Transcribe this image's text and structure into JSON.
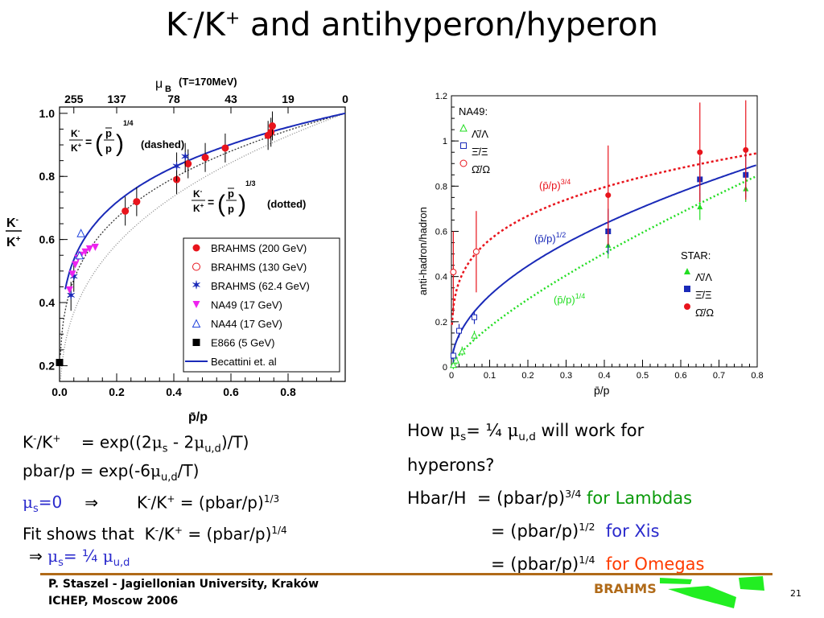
{
  "slide": {
    "title_a": "K",
    "title_sup1": "-",
    "title_b": "/K",
    "title_sup2": "+",
    "title_c": " and antihyperon/hyperon"
  },
  "left_plot": {
    "top_axis_title": "μ",
    "top_axis_sub": "B",
    "top_axis_temp": "(T=170MeV)",
    "top_ticks": [
      "255",
      "137",
      "78",
      "43",
      "19",
      "0"
    ],
    "y_label_num": "K-",
    "y_label_den": "K+",
    "x_label": "p̄/p",
    "formula_dashed_exp": "1/4",
    "formula_dashed_tag": "(dashed)",
    "formula_dotted_exp": "1/3",
    "formula_dotted_tag": "(dotted)",
    "formula_p_bar": "p",
    "formula_p": "p",
    "formula_eq": "=",
    "formula_k_minus": "K",
    "formula_k_plus": "K",
    "legend": [
      {
        "label": "BRAHMS (200 GeV)",
        "marker": "filled-circle",
        "color": "#e8141c"
      },
      {
        "label": "BRAHMS (130 GeV)",
        "marker": "open-circle",
        "color": "#e8141c"
      },
      {
        "label": "BRAHMS (62.4 GeV)",
        "marker": "star",
        "color": "#1a2ab8"
      },
      {
        "label": "NA49 (17 GeV)",
        "marker": "down-triangle",
        "color": "#ee22ee"
      },
      {
        "label": "NA44 (17 GeV)",
        "marker": "open-triangle",
        "color": "#2244dd"
      },
      {
        "label": "E866 (5 GeV)",
        "marker": "filled-square",
        "color": "#000000"
      },
      {
        "label": "Becattini et. al",
        "marker": "line",
        "color": "#1a2ab8"
      }
    ]
  },
  "right_plot": {
    "y_label": "anti-hadron/hadron",
    "x_label": "p̄/p",
    "na49_title": "NA49:",
    "star_title": "STAR:",
    "na49_legend": [
      "Λ̄/Λ",
      "Ξ̄/Ξ",
      "Ω̄/Ω"
    ],
    "star_legend": [
      "Λ̄/Λ",
      "Ξ̄/Ξ",
      "Ω̄/Ω"
    ],
    "curve_label_34": "(p̄/p)",
    "curve_exp_34": "3/4",
    "curve_label_12": "(p̄/p)",
    "curve_exp_12": "1/2",
    "curve_label_14": "(p̄/p)",
    "curve_exp_14": "1/4",
    "colors": {
      "red": "#e8141c",
      "blue": "#1a2ab8",
      "green": "#22dd22"
    }
  },
  "chart_data": [
    {
      "type": "scatter",
      "title": "",
      "xlabel": "p̄/p",
      "ylabel": "K-/K+",
      "xlim": [
        0.0,
        1.0
      ],
      "ylim": [
        0.15,
        1.02
      ],
      "x_ticks": [
        "0.0",
        "0.2",
        "0.4",
        "0.6",
        "0.8"
      ],
      "y_ticks": [
        "0.2",
        "0.4",
        "0.6",
        "0.8",
        "1.0"
      ],
      "top_axis": {
        "title": "μB (T=170MeV)",
        "ticks": [
          "255",
          "137",
          "78",
          "43",
          "19",
          "0"
        ]
      },
      "series": [
        {
          "name": "BRAHMS (200 GeV)",
          "x": [
            0.23,
            0.27,
            0.41,
            0.45,
            0.51,
            0.58,
            0.73,
            0.74,
            0.745
          ],
          "y": [
            0.69,
            0.72,
            0.79,
            0.84,
            0.86,
            0.89,
            0.93,
            0.94,
            0.96
          ]
        },
        {
          "name": "BRAHMS (62.4 GeV)",
          "x": [
            0.04,
            0.05,
            0.41,
            0.44
          ],
          "y": [
            0.42,
            0.48,
            0.83,
            0.86
          ]
        },
        {
          "name": "NA49 (17 GeV)",
          "x": [
            0.035,
            0.045,
            0.055,
            0.065,
            0.075,
            0.09,
            0.105,
            0.125
          ],
          "y": [
            0.44,
            0.49,
            0.52,
            0.54,
            0.55,
            0.56,
            0.57,
            0.575
          ]
        },
        {
          "name": "NA44 (17 GeV)",
          "x": [
            0.07,
            0.075
          ],
          "y": [
            0.55,
            0.62
          ]
        },
        {
          "name": "E866 (5 GeV)",
          "x": [
            0.0
          ],
          "y": [
            0.21
          ]
        }
      ],
      "curves": [
        {
          "name": "Becattini et. al",
          "style": "solid"
        },
        {
          "name": "(p̄/p)^1/4",
          "style": "dashed"
        },
        {
          "name": "(p̄/p)^1/3",
          "style": "dotted"
        }
      ],
      "grid": false,
      "legend": "bottom-right"
    },
    {
      "type": "scatter",
      "title": "",
      "xlabel": "p̄/p",
      "ylabel": "anti-hadron/hadron",
      "xlim": [
        0.0,
        0.8
      ],
      "ylim": [
        0.0,
        1.2
      ],
      "x_ticks": [
        "0",
        "0.1",
        "0.2",
        "0.3",
        "0.4",
        "0.5",
        "0.6",
        "0.7",
        "0.8"
      ],
      "y_ticks": [
        "0",
        "0.2",
        "0.4",
        "0.6",
        "0.8",
        "1",
        "1.2"
      ],
      "series": [
        {
          "name": "NA49 Λ̄/Λ",
          "x": [
            0.005,
            0.012,
            0.028,
            0.06
          ],
          "y": [
            0.01,
            0.03,
            0.07,
            0.14
          ]
        },
        {
          "name": "NA49 Ξ̄/Ξ",
          "x": [
            0.005,
            0.02,
            0.06
          ],
          "y": [
            0.05,
            0.16,
            0.22
          ]
        },
        {
          "name": "NA49 Ω̄/Ω",
          "x": [
            0.005,
            0.065
          ],
          "y": [
            0.42,
            0.51
          ]
        },
        {
          "name": "STAR Λ̄/Λ",
          "x": [
            0.41,
            0.65,
            0.77
          ],
          "y": [
            0.54,
            0.71,
            0.79
          ]
        },
        {
          "name": "STAR Ξ̄/Ξ",
          "x": [
            0.41,
            0.65,
            0.77
          ],
          "y": [
            0.6,
            0.83,
            0.85
          ]
        },
        {
          "name": "STAR Ω̄/Ω",
          "x": [
            0.41,
            0.65,
            0.77
          ],
          "y": [
            0.76,
            0.95,
            0.96
          ]
        }
      ],
      "curves": [
        {
          "name": "(p̄/p)^3/4",
          "style": "dotted",
          "color": "#e8141c"
        },
        {
          "name": "(p̄/p)^1/2",
          "style": "solid",
          "color": "#1a2ab8"
        },
        {
          "name": "(p̄/p)^1/4",
          "style": "dotted",
          "color": "#22dd22"
        }
      ],
      "grid": false,
      "legend": "top-left"
    }
  ],
  "text_left": {
    "l1_a": "K",
    "l1_sup1": "-",
    "l1_b": "/K",
    "l1_sup2": "+",
    "l1_c": "    = exp((2",
    "l1_mu1": "μ",
    "l1_sub1": "s",
    "l1_d": " - 2",
    "l1_mu2": "μ",
    "l1_sub2": "u,d",
    "l1_e": ")/T)",
    "l2_a": "pbar/p = exp(-6",
    "l2_mu": "μ",
    "l2_sub": "u,d",
    "l2_b": "/T)",
    "l3_mu": "μ",
    "l3_sub": "s",
    "l3_a": "=0",
    "l3_arrow": "⇒",
    "l3_b": "K",
    "l3_sup1": "-",
    "l3_c": "/K",
    "l3_sup2": "+",
    "l3_d": " = (pbar/p)",
    "l3_exp": "1/3",
    "l4_a": "Fit shows that  K",
    "l4_sup1": "-",
    "l4_b": "/K",
    "l4_sup2": "+",
    "l4_c": " = (pbar/p)",
    "l4_exp": "1/4",
    "l5_arrow": "⇒",
    "l5_mu1": "μ",
    "l5_sub1": "s",
    "l5_a": "= ¼ ",
    "l5_mu2": "μ",
    "l5_sub2": "u,d"
  },
  "text_right": {
    "l1_a": "How ",
    "l1_mu1": "μ",
    "l1_sub1": "s",
    "l1_b": "= ¼ ",
    "l1_mu2": "μ",
    "l1_sub2": "u,d",
    "l1_c": " will work for",
    "l2": "hyperons?",
    "l3_a": "Hbar/H  = (pbar/p)",
    "l3_exp": "3/4",
    "l3_tag": " for Lambdas",
    "l4_a": "= (pbar/p)",
    "l4_exp": "1/2",
    "l4_tag": "  for Xis",
    "l5_a": "= (pbar/p)",
    "l5_exp": "1/4",
    "l5_tag": "  for Omegas"
  },
  "footer": {
    "line1": "P. Staszel - Jagiellonian University, Kraków",
    "line2": "ICHEP, Moscow 2006",
    "logo_text": "BRAHMS",
    "page_number": "21"
  }
}
